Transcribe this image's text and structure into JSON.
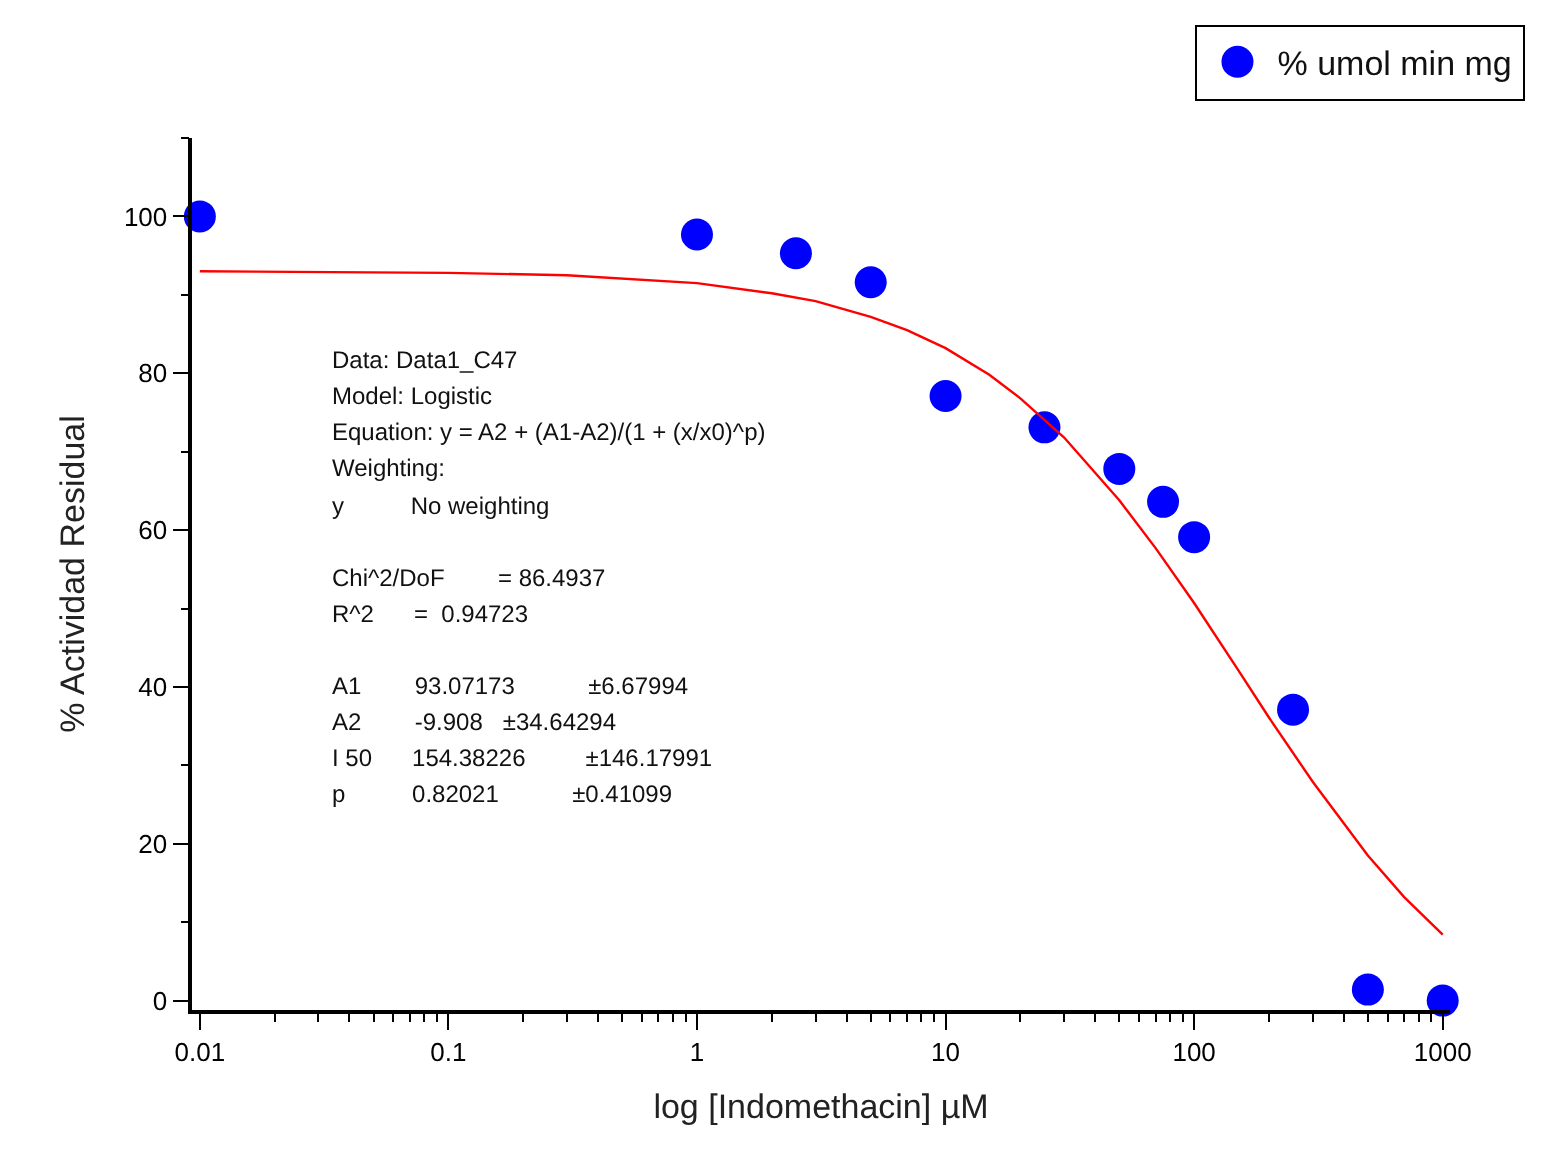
{
  "chart_data": {
    "type": "scatter",
    "xlabel": "log [Indomethacin] µM",
    "ylabel": "% Actividad Residual",
    "log": "x",
    "xlim": [
      0.0093,
      1070
    ],
    "xticks": [
      0.01,
      0.1,
      1,
      10,
      100,
      1000
    ],
    "ylim": [
      -1.2,
      110
    ],
    "yticks": [
      0,
      20,
      40,
      60,
      80,
      100
    ],
    "grid": false,
    "legend": "top right",
    "marker": "circle",
    "series": [
      {
        "name": "% umol min mg",
        "color": "#0000ff",
        "x": [
          0.01,
          1,
          2.5,
          5,
          10,
          25,
          50,
          75,
          100,
          250,
          500,
          1000
        ],
        "values": [
          100,
          97.7,
          95.3,
          91.6,
          77.1,
          73.1,
          67.8,
          63.6,
          59.1,
          37.1,
          1.4,
          0
        ]
      },
      {
        "type": "line",
        "color": "#ff0000",
        "marker": "none",
        "x": [
          0.01,
          0.1,
          0.3,
          1,
          2,
          3,
          5,
          7,
          10,
          15,
          20,
          30,
          50,
          70,
          100,
          150,
          200,
          300,
          500,
          700,
          1000
        ],
        "values": [
          93.0,
          92.8,
          92.5,
          91.5,
          90.2,
          89.2,
          87.2,
          85.5,
          83.2,
          79.8,
          76.8,
          71.8,
          63.8,
          57.7,
          50.7,
          42.2,
          36.1,
          27.9,
          18.5,
          13.2,
          8.4
        ]
      }
    ],
    "annotations": [
      "Data: Data1_C47",
      "Model: Logistic",
      "Equation: y = A2 + (A1-A2)/(1 + (x/x0)^p)",
      "Weighting:",
      "y          No weighting",
      "Chi^2/DoF        = 86.4937",
      "R^2      =  0.94723",
      "A1        93.07173           ±6.67994",
      "A2        -9.908   ±34.64294",
      "I 50      154.38226         ±146.17991",
      "p          0.82021           ±0.41099"
    ]
  }
}
